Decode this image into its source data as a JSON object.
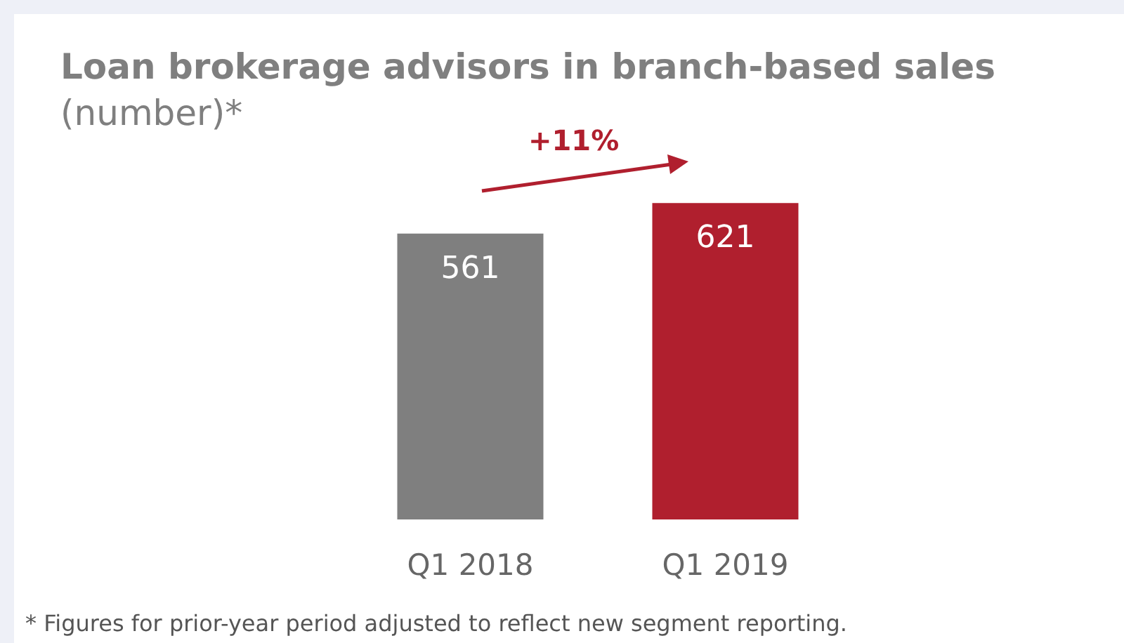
{
  "chart_data": {
    "type": "bar",
    "title": "Loan brokerage advisors in branch-based sales",
    "subtitle": "(number)*",
    "categories": [
      "Q1 2018",
      "Q1 2019"
    ],
    "values": [
      561,
      621
    ],
    "colors": [
      "#7f7f7f",
      "#b01f2e"
    ],
    "data_labels": true,
    "annotations": [
      "+11%",
      "* Figures for prior-year period adjusted to reflect new segment reporting."
    ]
  }
}
